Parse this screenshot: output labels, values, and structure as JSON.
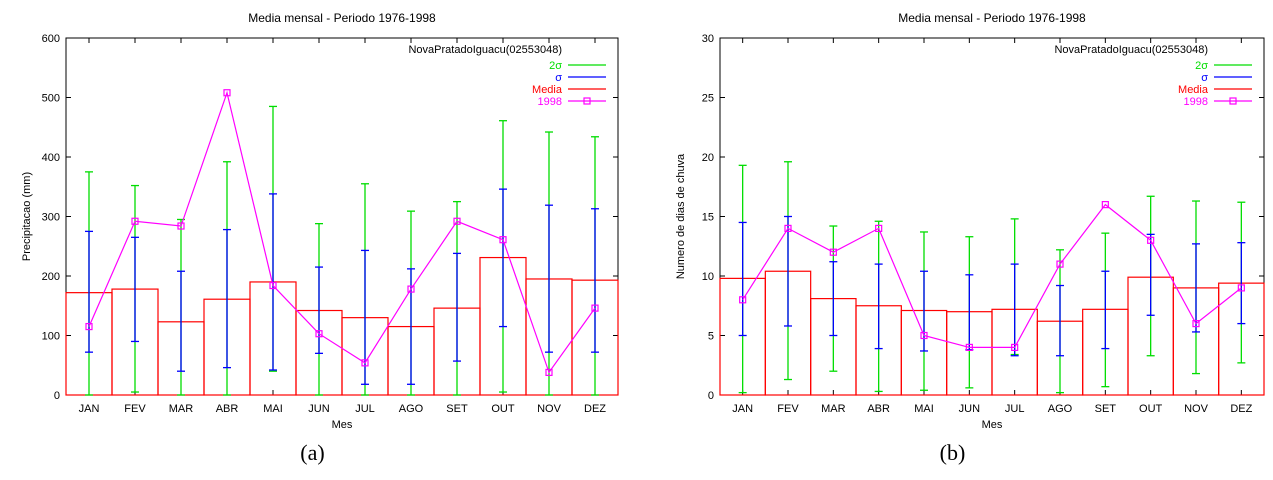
{
  "chart_data": [
    {
      "type": "bar",
      "title": "Media mensal - Periodo 1976-1998",
      "xlabel": "Mes",
      "ylabel": "Precipitacao (mm)",
      "ylim": [
        0,
        600
      ],
      "yticks": [
        0,
        100,
        200,
        300,
        400,
        500,
        600
      ],
      "categories": [
        "JAN",
        "FEV",
        "MAR",
        "ABR",
        "MAI",
        "JUN",
        "JUL",
        "AGO",
        "SET",
        "OUT",
        "NOV",
        "DEZ"
      ],
      "station": "NovaPratadoIguacu(02553048)",
      "legend_position": "top-right",
      "colors": {
        "sigma2": "#00dd00",
        "sigma": "#0000ff",
        "media": "#ff0000",
        "y1998": "#ff00ff",
        "axes": "#000000"
      },
      "series": [
        {
          "name": "2σ",
          "kind": "errorbar",
          "low": [
            0,
            5,
            0,
            0,
            40,
            0,
            0,
            0,
            0,
            5,
            0,
            0
          ],
          "high": [
            375,
            352,
            295,
            392,
            485,
            288,
            355,
            309,
            325,
            461,
            442,
            434
          ]
        },
        {
          "name": "σ",
          "kind": "errorbar",
          "low": [
            72,
            90,
            40,
            46,
            42,
            70,
            18,
            18,
            57,
            115,
            72,
            72
          ],
          "high": [
            275,
            265,
            208,
            278,
            338,
            215,
            243,
            212,
            238,
            346,
            319,
            313
          ]
        },
        {
          "name": "Media",
          "kind": "bar",
          "values": [
            172,
            178,
            123,
            161,
            190,
            142,
            130,
            115,
            146,
            231,
            195,
            193
          ]
        },
        {
          "name": "1998",
          "kind": "line",
          "values": [
            115,
            292,
            284,
            508,
            184,
            103,
            54,
            178,
            292,
            261,
            38,
            146
          ]
        }
      ]
    },
    {
      "type": "bar",
      "title": "Media mensal - Periodo 1976-1998",
      "xlabel": "Mes",
      "ylabel": "Numero de dias de chuva",
      "ylim": [
        0,
        30
      ],
      "yticks": [
        0,
        5,
        10,
        15,
        20,
        25,
        30
      ],
      "categories": [
        "JAN",
        "FEV",
        "MAR",
        "ABR",
        "MAI",
        "JUN",
        "JUL",
        "AGO",
        "SET",
        "OUT",
        "NOV",
        "DEZ"
      ],
      "station": "NovaPratadoIguacu(02553048)",
      "legend_position": "top-right",
      "colors": {
        "sigma2": "#00dd00",
        "sigma": "#0000ff",
        "media": "#ff0000",
        "y1998": "#ff00ff",
        "axes": "#000000"
      },
      "series": [
        {
          "name": "2σ",
          "kind": "errorbar",
          "low": [
            0.2,
            1.3,
            2.0,
            0.3,
            0.4,
            0.6,
            3.4,
            0.2,
            0.7,
            3.3,
            1.8,
            2.7
          ],
          "high": [
            19.3,
            19.6,
            14.2,
            14.6,
            13.7,
            13.3,
            14.8,
            12.2,
            13.6,
            16.7,
            16.3,
            16.2
          ]
        },
        {
          "name": "σ",
          "kind": "errorbar",
          "low": [
            5.0,
            5.8,
            5.0,
            3.9,
            3.7,
            3.8,
            3.3,
            3.3,
            3.9,
            6.7,
            5.3,
            6.0
          ],
          "high": [
            14.5,
            15.0,
            11.2,
            11.0,
            10.4,
            10.1,
            11.0,
            9.2,
            10.4,
            13.5,
            12.7,
            12.8
          ]
        },
        {
          "name": "Media",
          "kind": "bar",
          "values": [
            9.8,
            10.4,
            8.1,
            7.5,
            7.1,
            7.0,
            7.2,
            6.2,
            7.2,
            9.9,
            9.0,
            9.4
          ]
        },
        {
          "name": "1998",
          "kind": "line",
          "values": [
            8,
            14,
            12,
            14,
            5,
            4,
            4,
            11,
            16,
            13,
            6,
            9
          ]
        }
      ]
    }
  ],
  "captions": [
    "(a)",
    "(b)"
  ]
}
